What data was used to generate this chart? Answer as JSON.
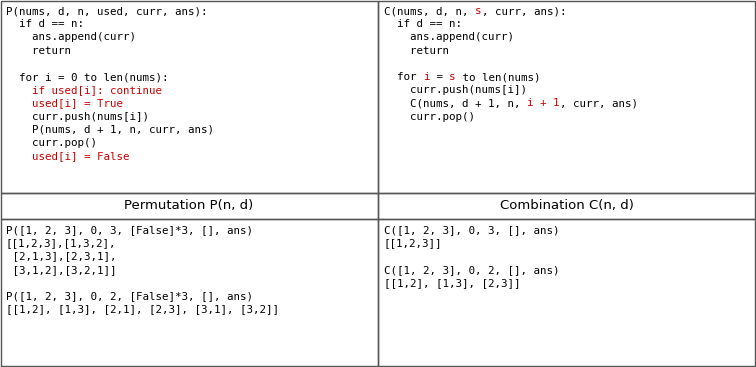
{
  "bg_color": "#ffffff",
  "border_color": "#555555",
  "text_color": "#000000",
  "red_color": "#cc0000",
  "font_size": 7.8,
  "label_font_size": 9.5,
  "top_left_lines": [
    [
      {
        "t": "P(nums, d, n, used, curr, ans):",
        "c": "black"
      }
    ],
    [
      {
        "t": "  if d == n:",
        "c": "black"
      }
    ],
    [
      {
        "t": "    ans.append(curr)",
        "c": "black"
      }
    ],
    [
      {
        "t": "    return",
        "c": "black"
      }
    ],
    [],
    [
      {
        "t": "  for i = 0 to len(nums):",
        "c": "black"
      }
    ],
    [
      {
        "t": "    if used[i]: continue",
        "c": "red"
      }
    ],
    [
      {
        "t": "    used[i] = True",
        "c": "red"
      }
    ],
    [
      {
        "t": "    curr.push(nums[i])",
        "c": "black"
      }
    ],
    [
      {
        "t": "    P(nums, d + 1, n, curr, ans)",
        "c": "black"
      }
    ],
    [
      {
        "t": "    curr.pop()",
        "c": "black"
      }
    ],
    [
      {
        "t": "    used[i] = False",
        "c": "red"
      }
    ]
  ],
  "top_right_lines": [
    [
      {
        "t": "C(nums, d, n, ",
        "c": "black"
      },
      {
        "t": "s",
        "c": "red"
      },
      {
        "t": ", curr, ans):",
        "c": "black"
      }
    ],
    [
      {
        "t": "  if d == n:",
        "c": "black"
      }
    ],
    [
      {
        "t": "    ans.append(curr)",
        "c": "black"
      }
    ],
    [
      {
        "t": "    return",
        "c": "black"
      }
    ],
    [],
    [
      {
        "t": "  for ",
        "c": "black"
      },
      {
        "t": "i",
        "c": "red"
      },
      {
        "t": " = ",
        "c": "black"
      },
      {
        "t": "s",
        "c": "red"
      },
      {
        "t": " to len(nums)",
        "c": "black"
      }
    ],
    [
      {
        "t": "    curr.push(nums[i])",
        "c": "black"
      }
    ],
    [
      {
        "t": "    C(nums, d + 1, n, ",
        "c": "black"
      },
      {
        "t": "i + 1",
        "c": "red"
      },
      {
        "t": ", curr, ans)",
        "c": "black"
      }
    ],
    [
      {
        "t": "    curr.pop()",
        "c": "black"
      }
    ]
  ],
  "label_left": "Permutation P(n, d)",
  "label_right": "Combination C(n, d)",
  "bottom_left_lines": [
    "P([1, 2, 3], 0, 3, [False]*3, [], ans)",
    "[[1,2,3],[1,3,2],",
    " [2,1,3],[2,3,1],",
    " [3,1,2],[3,2,1]]",
    "",
    "P([1, 2, 3], 0, 2, [False]*3, [], ans)",
    "[[1,2], [1,3], [2,1], [2,3], [3,1], [3,2]]"
  ],
  "bottom_right_lines": [
    "C([1, 2, 3], 0, 3, [], ans)",
    "[[1,2,3]]",
    "",
    "C([1, 2, 3], 0, 2, [], ans)",
    "[[1,2], [1,3], [2,3]]"
  ],
  "fig_width": 7.56,
  "fig_height": 3.67,
  "dpi": 100
}
